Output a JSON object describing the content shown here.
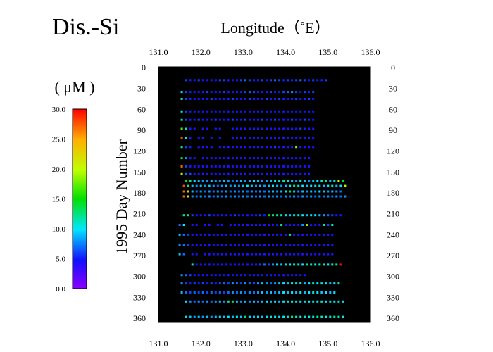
{
  "chart_data": {
    "type": "scatter",
    "title": "Dis.-Si",
    "xlabel": "Longitude（˚E）",
    "ylabel": "1995  Day  Number",
    "xlim": [
      131.0,
      136.0
    ],
    "ylim": [
      0,
      365
    ],
    "xticks": [
      "131.0",
      "132.0",
      "133.0",
      "134.0",
      "135.0",
      "136.0"
    ],
    "yticks": [
      "0",
      "30",
      "60",
      "90",
      "120",
      "150",
      "180",
      "210",
      "240",
      "270",
      "300",
      "330",
      "360"
    ],
    "background": "#000000",
    "colorbar": {
      "label": "( μM )",
      "range": [
        0,
        30
      ],
      "ticks": [
        "0.0",
        "5.0",
        "10.0",
        "15.0",
        "20.0",
        "25.0",
        "30.0"
      ]
    },
    "rows": [
      {
        "day": 18,
        "start": 131.65,
        "end": 134.95,
        "spacing": 0.1,
        "values": [
          6,
          5,
          5,
          6,
          5,
          5,
          4,
          5,
          6,
          6,
          5,
          4,
          5,
          6,
          7,
          6,
          5,
          5,
          6,
          5,
          6,
          7,
          6,
          5,
          6,
          5,
          6,
          7,
          6,
          5,
          6,
          5,
          5,
          6
        ]
      },
      {
        "day": 35,
        "start": 131.55,
        "end": 134.7,
        "spacing": 0.1,
        "values": [
          10,
          6,
          5,
          5,
          4,
          5,
          6,
          5,
          4,
          5,
          6,
          5,
          4,
          4,
          5,
          6,
          7,
          6,
          5,
          4,
          5,
          6,
          5,
          5,
          6,
          7,
          8,
          6,
          5,
          6,
          5,
          6
        ]
      },
      {
        "day": 45,
        "start": 131.55,
        "end": 134.7,
        "spacing": 0.1,
        "values": [
          11,
          6,
          5,
          4,
          5,
          4,
          5,
          6,
          5,
          4,
          5,
          5,
          6,
          5,
          4,
          5,
          6,
          5,
          4,
          5,
          6,
          5,
          5,
          6,
          5,
          4,
          5,
          6,
          5,
          5,
          6,
          5
        ]
      },
      {
        "day": 63,
        "start": 131.55,
        "end": 134.7,
        "spacing": 0.1,
        "values": [
          10,
          6,
          5,
          4,
          5,
          4,
          5,
          4,
          5,
          4,
          5,
          4,
          5,
          5,
          4,
          5,
          4,
          4,
          5,
          4,
          5,
          4,
          5,
          5,
          4,
          5,
          5,
          4,
          5,
          4,
          5,
          5
        ]
      },
      {
        "day": 75,
        "start": 131.55,
        "end": 134.7,
        "spacing": 0.1,
        "values": [
          12,
          6,
          5,
          5,
          6,
          5,
          4,
          5,
          6,
          5,
          4,
          5,
          6,
          5,
          5,
          6,
          5,
          4,
          5,
          6,
          5,
          5,
          6,
          5,
          4,
          5,
          6,
          5,
          5,
          6,
          5,
          5
        ]
      },
      {
        "day": 88,
        "start": 131.55,
        "end": 134.7,
        "spacing": 0.1,
        "values": [
          17,
          11,
          5,
          4,
          0,
          5,
          4,
          0,
          5,
          4,
          0,
          0,
          5,
          5,
          4,
          5,
          4,
          5,
          5,
          4,
          5,
          4,
          4,
          5,
          4,
          5,
          4,
          5,
          6,
          5,
          4,
          5
        ]
      },
      {
        "day": 101,
        "start": 131.55,
        "end": 134.7,
        "spacing": 0.1,
        "values": [
          28,
          10,
          5,
          0,
          4,
          5,
          0,
          4,
          0,
          5,
          0,
          0,
          5,
          4,
          5,
          4,
          5,
          4,
          5,
          4,
          5,
          4,
          5,
          4,
          4,
          5,
          4,
          5,
          4,
          5,
          5,
          4
        ]
      },
      {
        "day": 114,
        "start": 131.55,
        "end": 134.7,
        "spacing": 0.1,
        "values": [
          12,
          6,
          5,
          0,
          4,
          5,
          4,
          5,
          0,
          4,
          5,
          4,
          5,
          4,
          5,
          4,
          5,
          4,
          5,
          4,
          4,
          5,
          6,
          5,
          4,
          5,
          4,
          18,
          5,
          4,
          5,
          5
        ]
      },
      {
        "day": 130,
        "start": 131.55,
        "end": 134.6,
        "spacing": 0.1,
        "values": [
          14,
          8,
          5,
          4,
          0,
          5,
          4,
          5,
          4,
          5,
          4,
          5,
          4,
          5,
          4,
          5,
          4,
          5,
          4,
          5,
          5,
          4,
          5,
          4,
          5,
          4,
          5,
          4,
          5,
          5,
          4
        ]
      },
      {
        "day": 142,
        "start": 131.55,
        "end": 134.6,
        "spacing": 0.1,
        "values": [
          27,
          6,
          5,
          4,
          5,
          4,
          5,
          4,
          5,
          4,
          5,
          4,
          5,
          4,
          5,
          4,
          5,
          4,
          5,
          4,
          5,
          4,
          5,
          4,
          5,
          4,
          5,
          4,
          5,
          4,
          5
        ]
      },
      {
        "day": 153,
        "start": 131.55,
        "end": 134.55,
        "spacing": 0.1,
        "values": [
          19,
          7,
          6,
          5,
          4,
          5,
          4,
          5,
          4,
          5,
          4,
          5,
          4,
          5,
          4,
          5,
          4,
          5,
          4,
          5,
          4,
          5,
          4,
          5,
          5,
          4,
          5,
          4,
          5,
          4,
          5
        ]
      },
      {
        "day": 163,
        "start": 131.65,
        "end": 135.35,
        "spacing": 0.1,
        "values": [
          14,
          12,
          10,
          9,
          8,
          8,
          9,
          8,
          8,
          9,
          8,
          7,
          8,
          9,
          8,
          9,
          10,
          9,
          8,
          8,
          9,
          10,
          11,
          12,
          10,
          9,
          8,
          10,
          9,
          8,
          9,
          10,
          11,
          12,
          9,
          11,
          20,
          14
        ]
      },
      {
        "day": 170,
        "start": 131.6,
        "end": 135.4,
        "spacing": 0.1,
        "values": [
          28,
          12,
          9,
          8,
          9,
          8,
          9,
          8,
          7,
          8,
          9,
          8,
          9,
          8,
          9,
          10,
          9,
          8,
          9,
          8,
          9,
          10,
          9,
          8,
          9,
          10,
          12,
          11,
          10,
          9,
          10,
          11,
          10,
          9,
          10,
          11,
          9,
          10,
          19
        ]
      },
      {
        "day": 178,
        "start": 131.6,
        "end": 135.35,
        "spacing": 0.1,
        "values": [
          27,
          22,
          9,
          7,
          8,
          7,
          8,
          7,
          8,
          7,
          8,
          7,
          8,
          7,
          8,
          7,
          8,
          7,
          8,
          7,
          8,
          9,
          8,
          9,
          10,
          13,
          9,
          8,
          9,
          8,
          9,
          8,
          10,
          9,
          8,
          9,
          8,
          7
        ]
      },
      {
        "day": 185,
        "start": 131.6,
        "end": 135.4,
        "spacing": 0.1,
        "values": [
          27,
          21,
          8,
          7,
          8,
          7,
          8,
          7,
          8,
          7,
          8,
          7,
          8,
          7,
          8,
          7,
          8,
          7,
          8,
          7,
          8,
          7,
          8,
          7,
          8,
          7,
          8,
          7,
          8,
          7,
          8,
          7,
          8,
          7,
          8,
          7,
          8,
          7,
          8
        ]
      },
      {
        "day": 212,
        "start": 131.6,
        "end": 135.35,
        "spacing": 0.1,
        "values": [
          12,
          12,
          6,
          5,
          4,
          5,
          6,
          5,
          4,
          5,
          4,
          5,
          6,
          5,
          4,
          5,
          4,
          5,
          6,
          5,
          15,
          13,
          12,
          11,
          10,
          9,
          12,
          11,
          10,
          9,
          11,
          10,
          9,
          8,
          7,
          6,
          5,
          4
        ]
      },
      {
        "day": 226,
        "start": 131.5,
        "end": 135.25,
        "spacing": 0.1,
        "values": [
          7,
          10,
          0,
          5,
          4,
          0,
          5,
          4,
          0,
          4,
          5,
          0,
          4,
          5,
          4,
          5,
          4,
          5,
          4,
          5,
          4,
          5,
          4,
          5,
          12,
          5,
          4,
          5,
          4,
          8,
          18,
          4,
          5,
          4,
          12,
          6,
          11
        ]
      },
      {
        "day": 240,
        "start": 131.5,
        "end": 135.2,
        "spacing": 0.1,
        "values": [
          9,
          7,
          6,
          5,
          4,
          5,
          4,
          5,
          4,
          5,
          4,
          5,
          4,
          5,
          4,
          5,
          4,
          5,
          4,
          5,
          4,
          5,
          4,
          5,
          4,
          5,
          12,
          4,
          5,
          4,
          5,
          4,
          5,
          4,
          5,
          4,
          5
        ]
      },
      {
        "day": 255,
        "start": 131.5,
        "end": 135.2,
        "spacing": 0.1,
        "values": [
          8,
          7,
          6,
          5,
          4,
          5,
          4,
          5,
          4,
          5,
          4,
          5,
          4,
          5,
          4,
          5,
          4,
          5,
          4,
          5,
          4,
          5,
          4,
          5,
          4,
          5,
          4,
          5,
          4,
          5,
          4,
          5,
          4,
          5,
          4,
          5,
          4
        ]
      },
      {
        "day": 268,
        "start": 131.5,
        "end": 135.1,
        "spacing": 0.1,
        "values": [
          9,
          7,
          0,
          5,
          4,
          0,
          5,
          4,
          5,
          4,
          5,
          4,
          5,
          4,
          5,
          4,
          5,
          4,
          5,
          4,
          5,
          4,
          5,
          4,
          5,
          4,
          5,
          4,
          5,
          4,
          5,
          4,
          5,
          4,
          5,
          4,
          5
        ]
      },
      {
        "day": 283,
        "start": 131.8,
        "end": 135.4,
        "spacing": 0.1,
        "values": [
          11,
          5,
          4,
          5,
          4,
          5,
          4,
          5,
          4,
          5,
          4,
          5,
          4,
          5,
          4,
          5,
          6,
          7,
          6,
          8,
          10,
          9,
          11,
          10,
          12,
          11,
          10,
          12,
          11,
          10,
          11,
          12,
          10,
          11,
          12,
          30
        ]
      },
      {
        "day": 298,
        "start": 131.55,
        "end": 134.45,
        "spacing": 0.1,
        "values": [
          8,
          7,
          6,
          5,
          4,
          5,
          4,
          5,
          4,
          5,
          4,
          5,
          4,
          5,
          4,
          5,
          4,
          5,
          4,
          5,
          4,
          5,
          4,
          5,
          4,
          5,
          4,
          5,
          4,
          5
        ]
      },
      {
        "day": 310,
        "start": 131.55,
        "end": 135.3,
        "spacing": 0.1,
        "values": [
          8,
          6,
          5,
          6,
          5,
          6,
          5,
          6,
          5,
          6,
          7,
          6,
          8,
          7,
          6,
          8,
          7,
          6,
          8,
          9,
          8,
          7,
          8,
          9,
          10,
          9,
          10,
          11,
          10,
          9,
          10,
          11,
          10,
          11,
          10,
          9,
          10,
          11
        ]
      },
      {
        "day": 323,
        "start": 131.55,
        "end": 135.2,
        "spacing": 0.1,
        "values": [
          9,
          7,
          6,
          7,
          6,
          7,
          6,
          7,
          6,
          7,
          6,
          7,
          8,
          7,
          8,
          7,
          8,
          7,
          8,
          9,
          8,
          9,
          8,
          9,
          10,
          9,
          10,
          9,
          10,
          9,
          10,
          11,
          10,
          9,
          10,
          9,
          10
        ]
      },
      {
        "day": 336,
        "start": 131.65,
        "end": 135.35,
        "spacing": 0.1,
        "values": [
          10,
          8,
          7,
          8,
          7,
          8,
          7,
          8,
          9,
          8,
          12,
          13,
          9,
          8,
          9,
          8,
          9,
          8,
          9,
          10,
          9,
          10,
          9,
          10,
          11,
          10,
          11,
          10,
          11,
          10,
          11,
          10,
          11,
          10,
          11,
          10,
          11,
          10
        ]
      },
      {
        "day": 358,
        "start": 131.65,
        "end": 135.35,
        "spacing": 0.1,
        "values": [
          11,
          9,
          8,
          9,
          8,
          9,
          8,
          9,
          10,
          9,
          10,
          9,
          10,
          9,
          13,
          10,
          9,
          10,
          9,
          10,
          11,
          10,
          11,
          10,
          11,
          12,
          11,
          10,
          11,
          10,
          11,
          12,
          11,
          10,
          11,
          12,
          11,
          10
        ]
      }
    ]
  }
}
